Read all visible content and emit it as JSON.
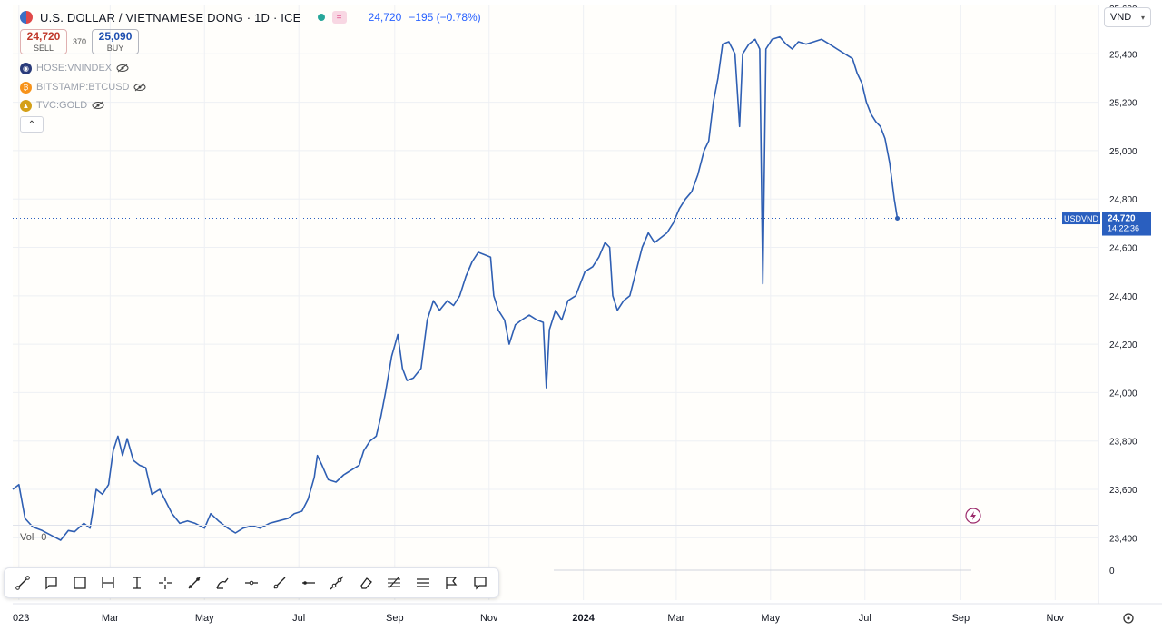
{
  "header": {
    "title": "U.S. DOLLAR / VIETNAMESE DONG · 1D · ICE",
    "last_price": "24,720",
    "change": "−195 (−0.78%)"
  },
  "trade": {
    "sell_value": "24,720",
    "sell_label": "SELL",
    "spread": "370",
    "buy_value": "25,090",
    "buy_label": "BUY"
  },
  "comparisons": [
    {
      "symbol": "HOSE:VNINDEX",
      "color": "#2a3b7a"
    },
    {
      "symbol": "BITSTAMP:BTCUSD",
      "color": "#f7931a"
    },
    {
      "symbol": "TVC:GOLD",
      "color": "#d4a017"
    }
  ],
  "currency_selector": "VND",
  "volume": {
    "label": "Vol",
    "value": "0",
    "axis_value": "0"
  },
  "price_tag": {
    "symbol": "USDVND",
    "price": "24,720",
    "countdown": "14:22:36",
    "color": "#2a5fbf"
  },
  "toolbar_icons": [
    "ruler-icon",
    "callout-icon",
    "rectangle-icon",
    "date-range-icon",
    "text-cursor-icon",
    "crosshair-icon",
    "trend-line-icon",
    "brush-icon",
    "horizontal-ray-icon",
    "line-tool-icon",
    "horizontal-line-icon",
    "extended-line-icon",
    "eraser-icon",
    "fib-icon",
    "lines-icon",
    "flag-icon",
    "comment-icon"
  ],
  "chart_data": {
    "type": "line",
    "line_color": "#2f5fb3",
    "x_tick_labels": [
      {
        "date": "2023-01-01",
        "label": "023"
      },
      {
        "date": "2023-03-01",
        "label": "Mar"
      },
      {
        "date": "2023-05-01",
        "label": "May"
      },
      {
        "date": "2023-07-01",
        "label": "Jul"
      },
      {
        "date": "2023-09-01",
        "label": "Sep"
      },
      {
        "date": "2023-11-01",
        "label": "Nov"
      },
      {
        "date": "2024-01-01",
        "label": "2024"
      },
      {
        "date": "2024-03-01",
        "label": "Mar"
      },
      {
        "date": "2024-05-01",
        "label": "May"
      },
      {
        "date": "2024-07-01",
        "label": "Jul"
      },
      {
        "date": "2024-09-01",
        "label": "Sep"
      },
      {
        "date": "2024-11-01",
        "label": "Nov"
      }
    ],
    "y_ticks": [
      23400,
      23600,
      23800,
      24000,
      24200,
      24400,
      24600,
      24800,
      25000,
      25200,
      25400
    ],
    "ylim": [
      23330,
      25600
    ],
    "xlim": [
      "2022-12-28",
      "2024-11-29"
    ],
    "grid": true,
    "last_value": 24720,
    "series": [
      {
        "values": [
          [
            "2022-12-28",
            23600
          ],
          [
            "2023-01-01",
            23620
          ],
          [
            "2023-01-05",
            23480
          ],
          [
            "2023-01-10",
            23445
          ],
          [
            "2023-01-16",
            23430
          ],
          [
            "2023-01-22",
            23410
          ],
          [
            "2023-01-28",
            23390
          ],
          [
            "2023-02-02",
            23430
          ],
          [
            "2023-02-06",
            23425
          ],
          [
            "2023-02-12",
            23460
          ],
          [
            "2023-02-16",
            23440
          ],
          [
            "2023-02-20",
            23600
          ],
          [
            "2023-02-24",
            23580
          ],
          [
            "2023-02-28",
            23620
          ],
          [
            "2023-03-03",
            23760
          ],
          [
            "2023-03-06",
            23820
          ],
          [
            "2023-03-09",
            23740
          ],
          [
            "2023-03-12",
            23810
          ],
          [
            "2023-03-16",
            23720
          ],
          [
            "2023-03-20",
            23700
          ],
          [
            "2023-03-24",
            23690
          ],
          [
            "2023-03-28",
            23580
          ],
          [
            "2023-04-02",
            23600
          ],
          [
            "2023-04-06",
            23550
          ],
          [
            "2023-04-10",
            23500
          ],
          [
            "2023-04-15",
            23460
          ],
          [
            "2023-04-20",
            23470
          ],
          [
            "2023-04-25",
            23460
          ],
          [
            "2023-05-01",
            23440
          ],
          [
            "2023-05-05",
            23500
          ],
          [
            "2023-05-10",
            23470
          ],
          [
            "2023-05-16",
            23440
          ],
          [
            "2023-05-21",
            23420
          ],
          [
            "2023-05-26",
            23440
          ],
          [
            "2023-06-01",
            23450
          ],
          [
            "2023-06-06",
            23440
          ],
          [
            "2023-06-12",
            23460
          ],
          [
            "2023-06-18",
            23470
          ],
          [
            "2023-06-24",
            23480
          ],
          [
            "2023-06-28",
            23500
          ],
          [
            "2023-07-03",
            23510
          ],
          [
            "2023-07-07",
            23560
          ],
          [
            "2023-07-11",
            23650
          ],
          [
            "2023-07-13",
            23740
          ],
          [
            "2023-07-16",
            23700
          ],
          [
            "2023-07-20",
            23640
          ],
          [
            "2023-07-25",
            23630
          ],
          [
            "2023-07-30",
            23660
          ],
          [
            "2023-08-04",
            23680
          ],
          [
            "2023-08-09",
            23700
          ],
          [
            "2023-08-12",
            23760
          ],
          [
            "2023-08-16",
            23800
          ],
          [
            "2023-08-20",
            23820
          ],
          [
            "2023-08-23",
            23900
          ],
          [
            "2023-08-26",
            24000
          ],
          [
            "2023-08-30",
            24150
          ],
          [
            "2023-09-03",
            24240
          ],
          [
            "2023-09-06",
            24100
          ],
          [
            "2023-09-09",
            24050
          ],
          [
            "2023-09-13",
            24060
          ],
          [
            "2023-09-18",
            24100
          ],
          [
            "2023-09-22",
            24300
          ],
          [
            "2023-09-26",
            24380
          ],
          [
            "2023-09-30",
            24340
          ],
          [
            "2023-10-05",
            24380
          ],
          [
            "2023-10-09",
            24360
          ],
          [
            "2023-10-13",
            24400
          ],
          [
            "2023-10-17",
            24480
          ],
          [
            "2023-10-21",
            24540
          ],
          [
            "2023-10-25",
            24580
          ],
          [
            "2023-10-29",
            24570
          ],
          [
            "2023-11-02",
            24560
          ],
          [
            "2023-11-04",
            24400
          ],
          [
            "2023-11-07",
            24340
          ],
          [
            "2023-11-11",
            24300
          ],
          [
            "2023-11-14",
            24200
          ],
          [
            "2023-11-18",
            24280
          ],
          [
            "2023-11-22",
            24300
          ],
          [
            "2023-11-27",
            24320
          ],
          [
            "2023-12-02",
            24300
          ],
          [
            "2023-12-06",
            24290
          ],
          [
            "2023-12-08",
            24020
          ],
          [
            "2023-12-10",
            24260
          ],
          [
            "2023-12-14",
            24340
          ],
          [
            "2023-12-18",
            24300
          ],
          [
            "2023-12-22",
            24380
          ],
          [
            "2023-12-27",
            24400
          ],
          [
            "2024-01-02",
            24500
          ],
          [
            "2024-01-07",
            24520
          ],
          [
            "2024-01-11",
            24560
          ],
          [
            "2024-01-15",
            24620
          ],
          [
            "2024-01-18",
            24600
          ],
          [
            "2024-01-20",
            24400
          ],
          [
            "2024-01-23",
            24340
          ],
          [
            "2024-01-27",
            24380
          ],
          [
            "2024-01-31",
            24400
          ],
          [
            "2024-02-04",
            24500
          ],
          [
            "2024-02-08",
            24600
          ],
          [
            "2024-02-12",
            24660
          ],
          [
            "2024-02-16",
            24620
          ],
          [
            "2024-02-20",
            24640
          ],
          [
            "2024-02-24",
            24660
          ],
          [
            "2024-02-28",
            24700
          ],
          [
            "2024-03-03",
            24760
          ],
          [
            "2024-03-07",
            24800
          ],
          [
            "2024-03-11",
            24830
          ],
          [
            "2024-03-15",
            24900
          ],
          [
            "2024-03-19",
            25000
          ],
          [
            "2024-03-22",
            25040
          ],
          [
            "2024-03-25",
            25200
          ],
          [
            "2024-03-28",
            25300
          ],
          [
            "2024-03-31",
            25440
          ],
          [
            "2024-04-04",
            25450
          ],
          [
            "2024-04-08",
            25400
          ],
          [
            "2024-04-11",
            25100
          ],
          [
            "2024-04-13",
            25400
          ],
          [
            "2024-04-17",
            25440
          ],
          [
            "2024-04-21",
            25460
          ],
          [
            "2024-04-24",
            25420
          ],
          [
            "2024-04-26",
            24450
          ],
          [
            "2024-04-28",
            25420
          ],
          [
            "2024-05-02",
            25460
          ],
          [
            "2024-05-07",
            25470
          ],
          [
            "2024-05-11",
            25440
          ],
          [
            "2024-05-15",
            25420
          ],
          [
            "2024-05-19",
            25450
          ],
          [
            "2024-05-24",
            25440
          ],
          [
            "2024-05-29",
            25450
          ],
          [
            "2024-06-03",
            25460
          ],
          [
            "2024-06-08",
            25440
          ],
          [
            "2024-06-13",
            25420
          ],
          [
            "2024-06-18",
            25400
          ],
          [
            "2024-06-23",
            25380
          ],
          [
            "2024-06-26",
            25320
          ],
          [
            "2024-06-29",
            25280
          ],
          [
            "2024-07-02",
            25200
          ],
          [
            "2024-07-05",
            25150
          ],
          [
            "2024-07-08",
            25120
          ],
          [
            "2024-07-11",
            25100
          ],
          [
            "2024-07-14",
            25050
          ],
          [
            "2024-07-17",
            24950
          ],
          [
            "2024-07-20",
            24800
          ],
          [
            "2024-07-22",
            24720
          ]
        ]
      }
    ]
  }
}
